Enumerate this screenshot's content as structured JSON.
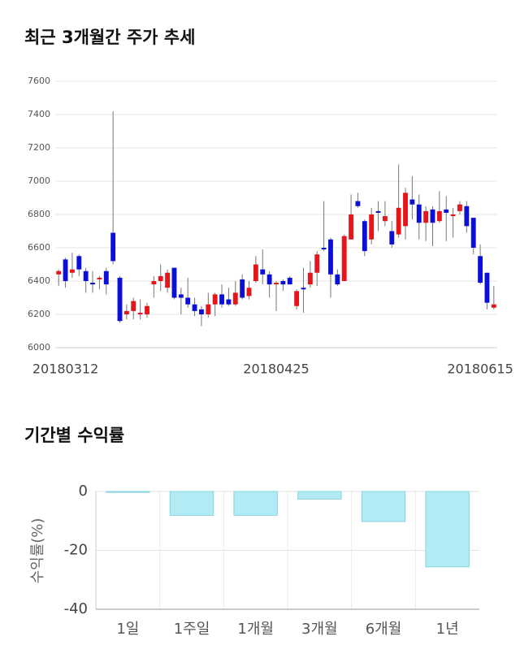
{
  "chart_data": [
    {
      "type": "candlestick",
      "title": "최근 3개월간 주가 추세",
      "categories": [
        null,
        "20180312",
        null,
        null,
        null,
        null,
        null,
        null,
        null,
        null,
        null,
        null,
        null,
        null,
        null,
        null,
        null,
        null,
        null,
        null,
        null,
        null,
        null,
        null,
        null,
        null,
        null,
        null,
        null,
        null,
        null,
        null,
        "20180425",
        null,
        null,
        null,
        null,
        null,
        null,
        null,
        null,
        null,
        null,
        null,
        null,
        null,
        null,
        null,
        null,
        null,
        null,
        null,
        null,
        null,
        null,
        null,
        null,
        null,
        null,
        null,
        null,
        null,
        "20180615",
        null,
        null
      ],
      "open": [
        6440,
        6530,
        6450,
        6550,
        6460,
        6390,
        6410,
        6460,
        6690,
        6420,
        6200,
        6220,
        6200,
        6200,
        6380,
        6400,
        6360,
        6480,
        6320,
        6300,
        6260,
        6230,
        6200,
        6260,
        6320,
        6290,
        6260,
        6410,
        6310,
        6400,
        6470,
        6440,
        6380,
        6400,
        6420,
        6250,
        6360,
        6380,
        6450,
        6600,
        6650,
        6440,
        6400,
        6650,
        6880,
        6760,
        6650,
        6820,
        6760,
        6700,
        6680,
        6730,
        6890,
        6860,
        6750,
        6830,
        6760,
        6830,
        6790,
        6820,
        6850,
        6780,
        6550,
        6450,
        6240
      ],
      "high": [
        6470,
        6540,
        6570,
        6560,
        6480,
        6460,
        6430,
        6480,
        7420,
        6430,
        6260,
        6300,
        6290,
        6270,
        6430,
        6500,
        6470,
        6480,
        6360,
        6420,
        6300,
        6250,
        6330,
        6330,
        6380,
        6360,
        6400,
        6440,
        6400,
        6550,
        6590,
        6460,
        6400,
        6410,
        6430,
        6350,
        6480,
        6520,
        6580,
        6880,
        6660,
        6470,
        6680,
        6920,
        6930,
        6770,
        6840,
        6880,
        6880,
        6760,
        7100,
        6960,
        7030,
        6920,
        6850,
        6850,
        6940,
        6910,
        6840,
        6880,
        6880,
        6780,
        6620,
        6450,
        6370
      ],
      "low": [
        6370,
        6360,
        6420,
        6430,
        6330,
        6330,
        6350,
        6320,
        6500,
        6150,
        6170,
        6170,
        6170,
        6180,
        6300,
        6340,
        6330,
        6290,
        6200,
        6240,
        6190,
        6130,
        6180,
        6190,
        6240,
        6250,
        6250,
        6290,
        6290,
        6390,
        6380,
        6300,
        6220,
        6340,
        6380,
        6230,
        6210,
        6360,
        6370,
        6580,
        6300,
        6370,
        6400,
        6650,
        6840,
        6550,
        6620,
        6700,
        6730,
        6600,
        6660,
        6650,
        6770,
        6650,
        6640,
        6610,
        6750,
        6640,
        6660,
        6800,
        6690,
        6560,
        6380,
        6230,
        6230
      ],
      "close": [
        6460,
        6400,
        6470,
        6470,
        6400,
        6380,
        6420,
        6380,
        6520,
        6160,
        6220,
        6280,
        6210,
        6250,
        6400,
        6430,
        6450,
        6300,
        6300,
        6260,
        6220,
        6200,
        6260,
        6320,
        6260,
        6260,
        6330,
        6300,
        6360,
        6500,
        6440,
        6380,
        6390,
        6380,
        6380,
        6340,
        6350,
        6450,
        6560,
        6590,
        6440,
        6380,
        6670,
        6800,
        6850,
        6580,
        6800,
        6810,
        6790,
        6620,
        6840,
        6930,
        6860,
        6750,
        6820,
        6750,
        6820,
        6810,
        6800,
        6860,
        6730,
        6600,
        6390,
        6270,
        6260
      ],
      "up_color": "#e8141b",
      "down_color": "#0b10d6",
      "ylim": [
        6000,
        7600
      ],
      "yticks": [
        6000,
        6200,
        6400,
        6600,
        6800,
        7000,
        7200,
        7400,
        7600
      ],
      "grid": true
    },
    {
      "type": "bar",
      "title": "기간별 수익률",
      "ylabel": "수익률(%)",
      "categories": [
        "1일",
        "1주일",
        "1개월",
        "3개월",
        "6개월",
        "1년"
      ],
      "values": [
        -0.3,
        -8.1,
        -8.1,
        -2.6,
        -10.2,
        -25.6
      ],
      "color": "#b2ebf4",
      "edge_color": "#88d4df",
      "ylim": [
        -40,
        0
      ],
      "yticks": [
        -40,
        -20,
        0
      ],
      "grid": true
    }
  ]
}
